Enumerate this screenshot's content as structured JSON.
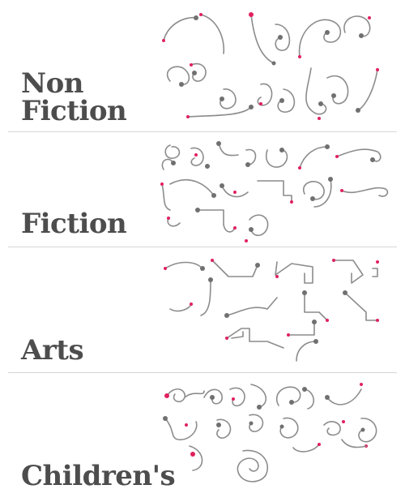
{
  "sections": [
    {
      "id": "non-fiction",
      "label": "Non\nFiction"
    },
    {
      "id": "fiction",
      "label": "Fiction"
    },
    {
      "id": "arts",
      "label": "Arts"
    },
    {
      "id": "childrens",
      "label": "Children's"
    }
  ],
  "colors": {
    "stroke": "#8c8c8c",
    "dot": "#707070",
    "accent": "#e0215d",
    "label": "#4d4d4d",
    "divider": "#d6d6d6"
  }
}
